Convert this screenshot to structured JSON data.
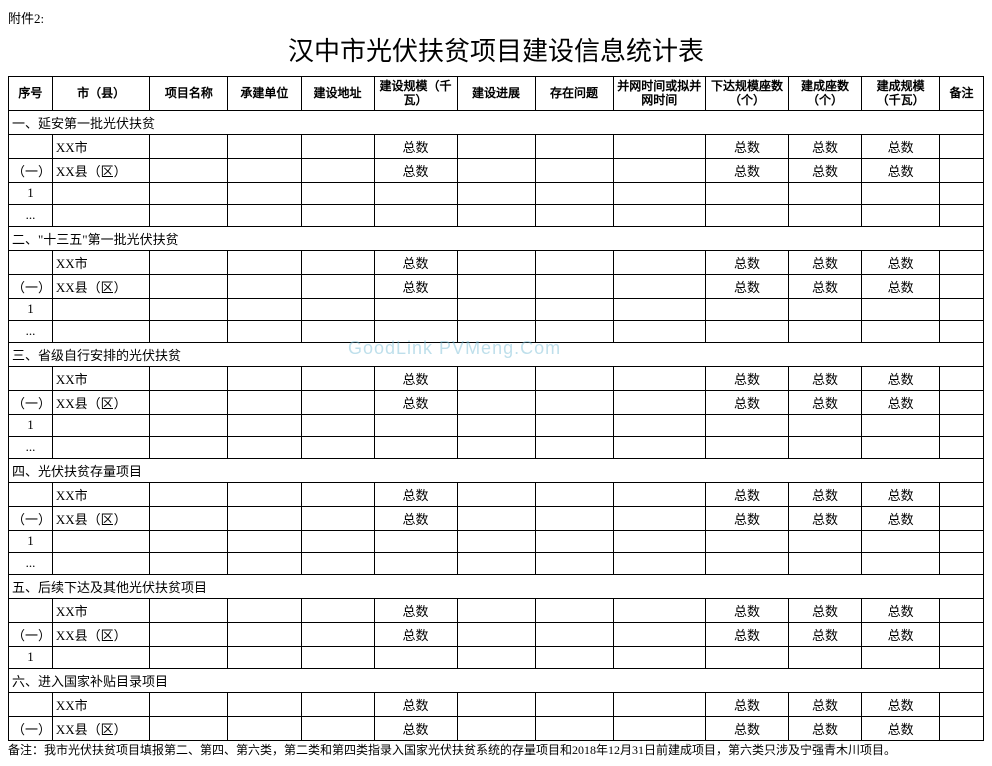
{
  "attachment_label": "附件2:",
  "title": "汉中市光伏扶贫项目建设信息统计表",
  "watermark": "GoodLink  PVMeng.Com",
  "headers": [
    "序号",
    "市（县）",
    "项目名称",
    "承建单位",
    "建设地址",
    "建设规模（千瓦）",
    "建设进展",
    "存在问题",
    "并网时间或拟并网时间",
    "下达规模座数（个）",
    "建成座数（个）",
    "建成规模（千瓦）",
    "备注"
  ],
  "sections": [
    {
      "label": "一、延安第一批光伏扶贫"
    },
    {
      "label": "二、\"十三五\"第一批光伏扶贫"
    },
    {
      "label": "三、省级自行安排的光伏扶贫"
    },
    {
      "label": "四、光伏扶贫存量项目"
    },
    {
      "label": "五、后续下达及其他光伏扶贫项目"
    },
    {
      "label": "六、进入国家补贴目录项目"
    }
  ],
  "row_labels": {
    "city": "XX市",
    "county_idx": "（一）",
    "county": "XX县（区）",
    "num1": "1",
    "dots": "..."
  },
  "totals_label": "总数",
  "footnote": "备注：我市光伏扶贫项目填报第二、第四、第六类，第二类和第四类指录入国家光伏扶贫系统的存量项目和2018年12月31日前建成项目，第六类只涉及宁强青木川项目。"
}
